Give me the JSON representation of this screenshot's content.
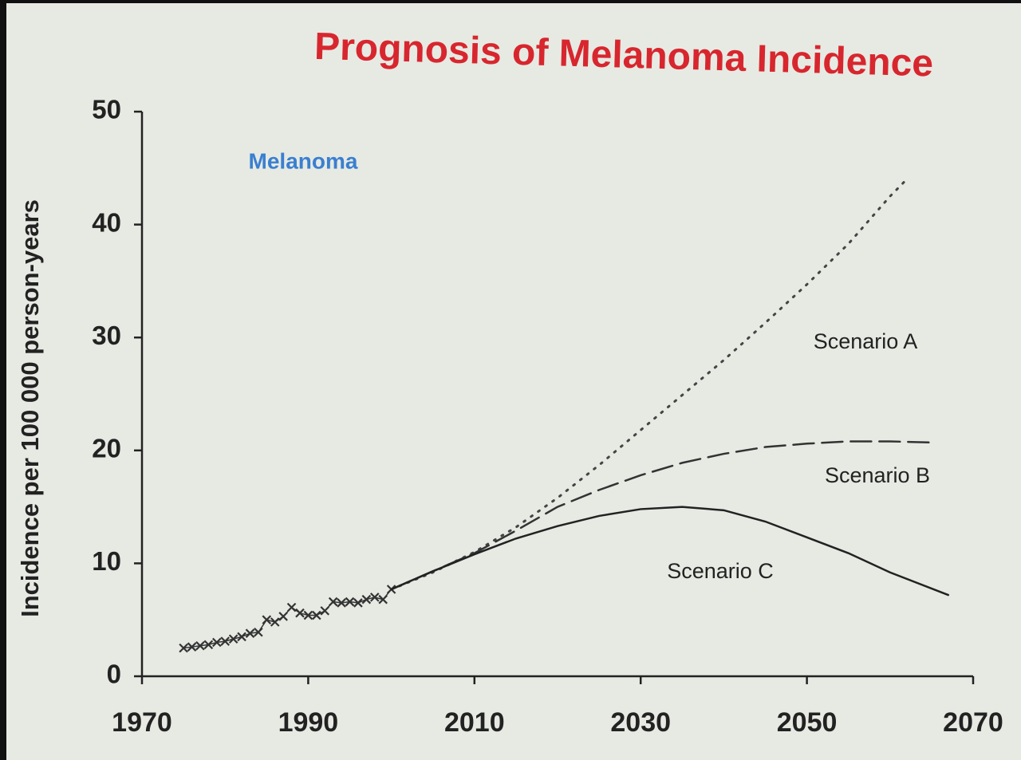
{
  "chart_data": {
    "type": "line",
    "title": "Prognosis of Melanoma Incidence",
    "annotation": "Melanoma",
    "ylabel": "Incidence per 100 000 person-years",
    "xlim": [
      1970,
      2070
    ],
    "ylim": [
      0,
      50
    ],
    "xticks": [
      1970,
      1990,
      2010,
      2030,
      2050,
      2070
    ],
    "yticks": [
      0,
      10,
      20,
      30,
      40,
      50
    ],
    "series": [
      {
        "color": "#333333",
        "style": "markers",
        "x": [
          1975,
          1976,
          1977,
          1978,
          1979,
          1980,
          1981,
          1982,
          1983,
          1984,
          1985,
          1986,
          1987,
          1988,
          1989,
          1990,
          1991,
          1992,
          1993,
          1994,
          1995,
          1996,
          1997,
          1998,
          1999,
          2000
        ],
        "values": [
          2.5,
          2.6,
          2.7,
          2.8,
          3.0,
          3.1,
          3.3,
          3.5,
          3.8,
          3.9,
          5.0,
          4.8,
          5.3,
          6.1,
          5.6,
          5.4,
          5.4,
          5.8,
          6.6,
          6.5,
          6.6,
          6.5,
          6.8,
          7.0,
          6.8,
          7.7
        ]
      },
      {
        "name": "Scenario A",
        "color": "#444444",
        "style": "dotted",
        "x": [
          2000,
          2005,
          2010,
          2015,
          2020,
          2025,
          2030,
          2035,
          2040,
          2045,
          2050,
          2055,
          2060,
          2062
        ],
        "values": [
          7.7,
          9.2,
          11.0,
          13.2,
          15.8,
          18.7,
          21.8,
          24.9,
          28.0,
          31.3,
          34.7,
          38.3,
          42.5,
          44.0
        ]
      },
      {
        "name": "Scenario B",
        "color": "#333333",
        "style": "dashed",
        "x": [
          2000,
          2005,
          2010,
          2015,
          2020,
          2025,
          2030,
          2035,
          2040,
          2045,
          2050,
          2055,
          2060,
          2065
        ],
        "values": [
          7.7,
          9.3,
          10.9,
          12.9,
          15.0,
          16.5,
          17.8,
          18.9,
          19.7,
          20.3,
          20.6,
          20.8,
          20.8,
          20.7
        ]
      },
      {
        "name": "Scenario C",
        "color": "#222222",
        "style": "solid",
        "x": [
          2000,
          2005,
          2010,
          2015,
          2020,
          2025,
          2030,
          2035,
          2040,
          2045,
          2050,
          2055,
          2060,
          2067
        ],
        "values": [
          7.7,
          9.3,
          10.8,
          12.2,
          13.3,
          14.2,
          14.8,
          15.0,
          14.7,
          13.7,
          12.3,
          10.9,
          9.2,
          7.2
        ]
      }
    ]
  }
}
